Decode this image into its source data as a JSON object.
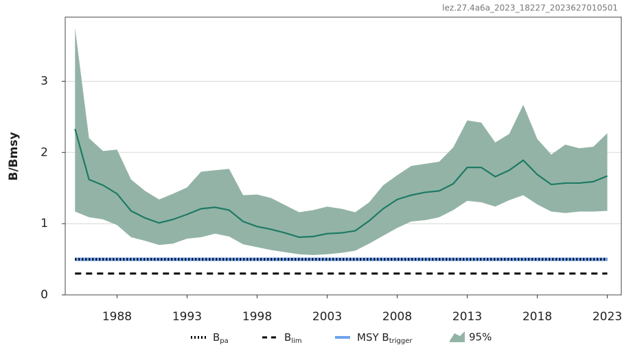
{
  "chart_data": {
    "type": "line",
    "subtitle": "lez.27.4a6a_2023_18227_2023627010501",
    "y_label": "B/Bmsy",
    "x": [
      1985,
      1986,
      1987,
      1988,
      1989,
      1990,
      1991,
      1992,
      1993,
      1994,
      1995,
      1996,
      1997,
      1998,
      1999,
      2000,
      2001,
      2002,
      2003,
      2004,
      2005,
      2006,
      2007,
      2008,
      2009,
      2010,
      2011,
      2012,
      2013,
      2014,
      2015,
      2016,
      2017,
      2018,
      2019,
      2020,
      2021,
      2022,
      2023
    ],
    "xlim": [
      1984.3,
      2024
    ],
    "xticks": [
      1988,
      1993,
      1998,
      2003,
      2008,
      2013,
      2018,
      2023
    ],
    "ylim": [
      0,
      3.9
    ],
    "yticks": [
      0,
      1,
      2,
      3
    ],
    "grid": true,
    "line": {
      "color": "#1d7a64",
      "values": [
        2.33,
        1.62,
        1.54,
        1.42,
        1.18,
        1.08,
        1.01,
        1.06,
        1.13,
        1.21,
        1.23,
        1.19,
        1.03,
        0.96,
        0.92,
        0.87,
        0.81,
        0.82,
        0.86,
        0.87,
        0.9,
        1.04,
        1.21,
        1.34,
        1.4,
        1.44,
        1.46,
        1.56,
        1.79,
        1.79,
        1.66,
        1.75,
        1.89,
        1.69,
        1.55,
        1.57,
        1.57,
        1.59,
        1.67
      ]
    },
    "band": {
      "name": "95%",
      "color": "#93b3a6",
      "upper": [
        3.75,
        2.2,
        2.02,
        2.04,
        1.62,
        1.46,
        1.34,
        1.42,
        1.51,
        1.73,
        1.75,
        1.77,
        1.4,
        1.41,
        1.36,
        1.26,
        1.16,
        1.19,
        1.24,
        1.21,
        1.16,
        1.3,
        1.54,
        1.68,
        1.81,
        1.84,
        1.87,
        2.07,
        2.45,
        2.42,
        2.14,
        2.26,
        2.67,
        2.19,
        1.97,
        2.11,
        2.06,
        2.08,
        2.27
      ],
      "lower": [
        1.17,
        1.09,
        1.06,
        0.98,
        0.81,
        0.76,
        0.7,
        0.72,
        0.79,
        0.81,
        0.86,
        0.82,
        0.71,
        0.67,
        0.63,
        0.6,
        0.57,
        0.56,
        0.57,
        0.59,
        0.62,
        0.72,
        0.83,
        0.94,
        1.03,
        1.05,
        1.09,
        1.19,
        1.32,
        1.3,
        1.24,
        1.33,
        1.4,
        1.27,
        1.17,
        1.15,
        1.17,
        1.17,
        1.18
      ]
    },
    "reference_lines": [
      {
        "name": "B",
        "name_sub": "pa",
        "value": 0.5,
        "color": "#000000",
        "style": "dotted"
      },
      {
        "name": "B",
        "name_sub": "lim",
        "value": 0.3,
        "color": "#000000",
        "style": "dashed"
      },
      {
        "name": "MSY B",
        "name_sub": "trigger",
        "value": 0.5,
        "color": "#6fa3f0",
        "style": "solid"
      }
    ]
  }
}
